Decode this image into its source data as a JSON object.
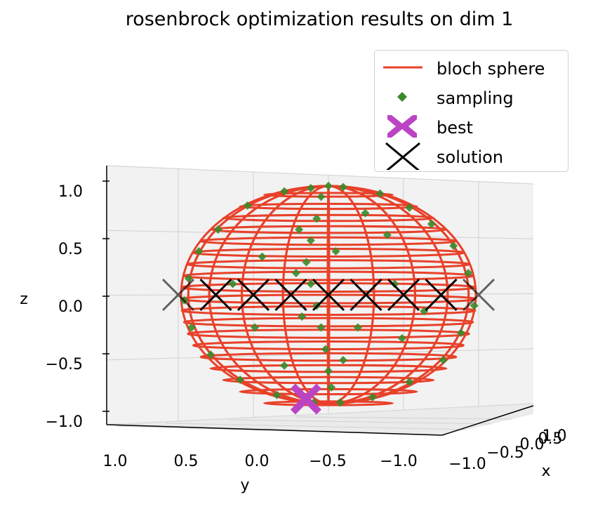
{
  "chart_data": {
    "type": "scatter",
    "title": "rosenbrock optimization results on dim 1",
    "projection": "3d",
    "xlabel": "x",
    "ylabel": "y",
    "zlabel": "z",
    "x_ticks": [
      "−1.0",
      "−0.5",
      "0.0",
      "0.5",
      "1.0"
    ],
    "y_ticks": [
      "1.0",
      "0.5",
      "0.0",
      "−0.5",
      "−1.0"
    ],
    "z_ticks": [
      "1.0",
      "0.5",
      "0.0",
      "−0.5",
      "−1.0"
    ],
    "xlim": [
      -1,
      1
    ],
    "ylim": [
      -1,
      1
    ],
    "zlim": [
      -1,
      1
    ],
    "grid": true,
    "legend": {
      "position": "top-right",
      "entries": [
        {
          "label": "bloch sphere",
          "marker": "line",
          "color": "#e8412a"
        },
        {
          "label": "sampling",
          "marker": "diamond",
          "color": "#3a8a2a"
        },
        {
          "label": "best",
          "marker": "x-filled",
          "color": "#bb44c4"
        },
        {
          "label": "solution",
          "marker": "x",
          "color": "#000000"
        }
      ]
    },
    "series": [
      {
        "name": "bloch sphere",
        "kind": "wireframe",
        "radius": 1,
        "color": "#e8412a"
      },
      {
        "name": "sampling",
        "kind": "scatter",
        "color": "#3a8a2a",
        "points": [
          {
            "y": 0.0,
            "z": 1.0
          },
          {
            "y": 0.12,
            "z": 0.98
          },
          {
            "y": -0.1,
            "z": 0.99
          },
          {
            "y": 0.3,
            "z": 0.95
          },
          {
            "y": -0.35,
            "z": 0.93
          },
          {
            "y": 0.55,
            "z": 0.82
          },
          {
            "y": -0.55,
            "z": 0.8
          },
          {
            "y": 0.75,
            "z": 0.6
          },
          {
            "y": -0.7,
            "z": 0.65
          },
          {
            "y": 0.88,
            "z": 0.4
          },
          {
            "y": -0.85,
            "z": 0.45
          },
          {
            "y": 0.95,
            "z": 0.15
          },
          {
            "y": -0.95,
            "z": 0.2
          },
          {
            "y": 0.98,
            "z": -0.05
          },
          {
            "y": -0.99,
            "z": -0.1
          },
          {
            "y": 0.93,
            "z": -0.3
          },
          {
            "y": -0.9,
            "z": -0.35
          },
          {
            "y": 0.8,
            "z": -0.55
          },
          {
            "y": -0.78,
            "z": -0.6
          },
          {
            "y": 0.6,
            "z": -0.78
          },
          {
            "y": -0.55,
            "z": -0.8
          },
          {
            "y": 0.35,
            "z": -0.92
          },
          {
            "y": -0.3,
            "z": -0.94
          },
          {
            "y": 0.1,
            "z": -0.99
          },
          {
            "y": -0.08,
            "z": -0.99
          },
          {
            "y": 0.05,
            "z": 0.9
          },
          {
            "y": 0.08,
            "z": 0.7
          },
          {
            "y": 0.12,
            "z": 0.5
          },
          {
            "y": 0.15,
            "z": 0.3
          },
          {
            "y": 0.12,
            "z": 0.1
          },
          {
            "y": 0.08,
            "z": -0.1
          },
          {
            "y": 0.05,
            "z": -0.3
          },
          {
            "y": 0.02,
            "z": -0.5
          },
          {
            "y": 0.0,
            "z": -0.7
          },
          {
            "y": -0.02,
            "z": -0.85
          },
          {
            "y": 0.2,
            "z": 0.6
          },
          {
            "y": 0.22,
            "z": 0.2
          },
          {
            "y": 0.18,
            "z": -0.2
          },
          {
            "y": -0.05,
            "z": 0.4
          },
          {
            "y": -0.1,
            "z": -0.6
          },
          {
            "y": -0.4,
            "z": 0.55
          },
          {
            "y": -0.45,
            "z": 0.1
          },
          {
            "y": -0.5,
            "z": -0.4
          },
          {
            "y": 0.45,
            "z": 0.35
          },
          {
            "y": 0.5,
            "z": -0.3
          },
          {
            "y": -0.25,
            "z": 0.75
          },
          {
            "y": 0.65,
            "z": 0.1
          },
          {
            "y": -0.65,
            "z": -0.15
          },
          {
            "y": 0.3,
            "z": -0.65
          },
          {
            "y": -0.2,
            "z": -0.3
          }
        ]
      },
      {
        "name": "best",
        "kind": "scatter",
        "color": "#bb44c4",
        "points": [
          {
            "y": 0.15,
            "z": -0.9
          }
        ]
      },
      {
        "name": "solution",
        "kind": "scatter",
        "color": "#000000",
        "points": [
          {
            "y": 1.0,
            "z": 0.0
          },
          {
            "y": 0.75,
            "z": 0.0
          },
          {
            "y": 0.5,
            "z": 0.0
          },
          {
            "y": 0.25,
            "z": 0.0
          },
          {
            "y": 0.0,
            "z": 0.0
          },
          {
            "y": -0.25,
            "z": 0.0
          },
          {
            "y": -0.5,
            "z": 0.0
          },
          {
            "y": -0.75,
            "z": 0.0
          },
          {
            "y": -1.0,
            "z": 0.0
          }
        ]
      }
    ]
  }
}
